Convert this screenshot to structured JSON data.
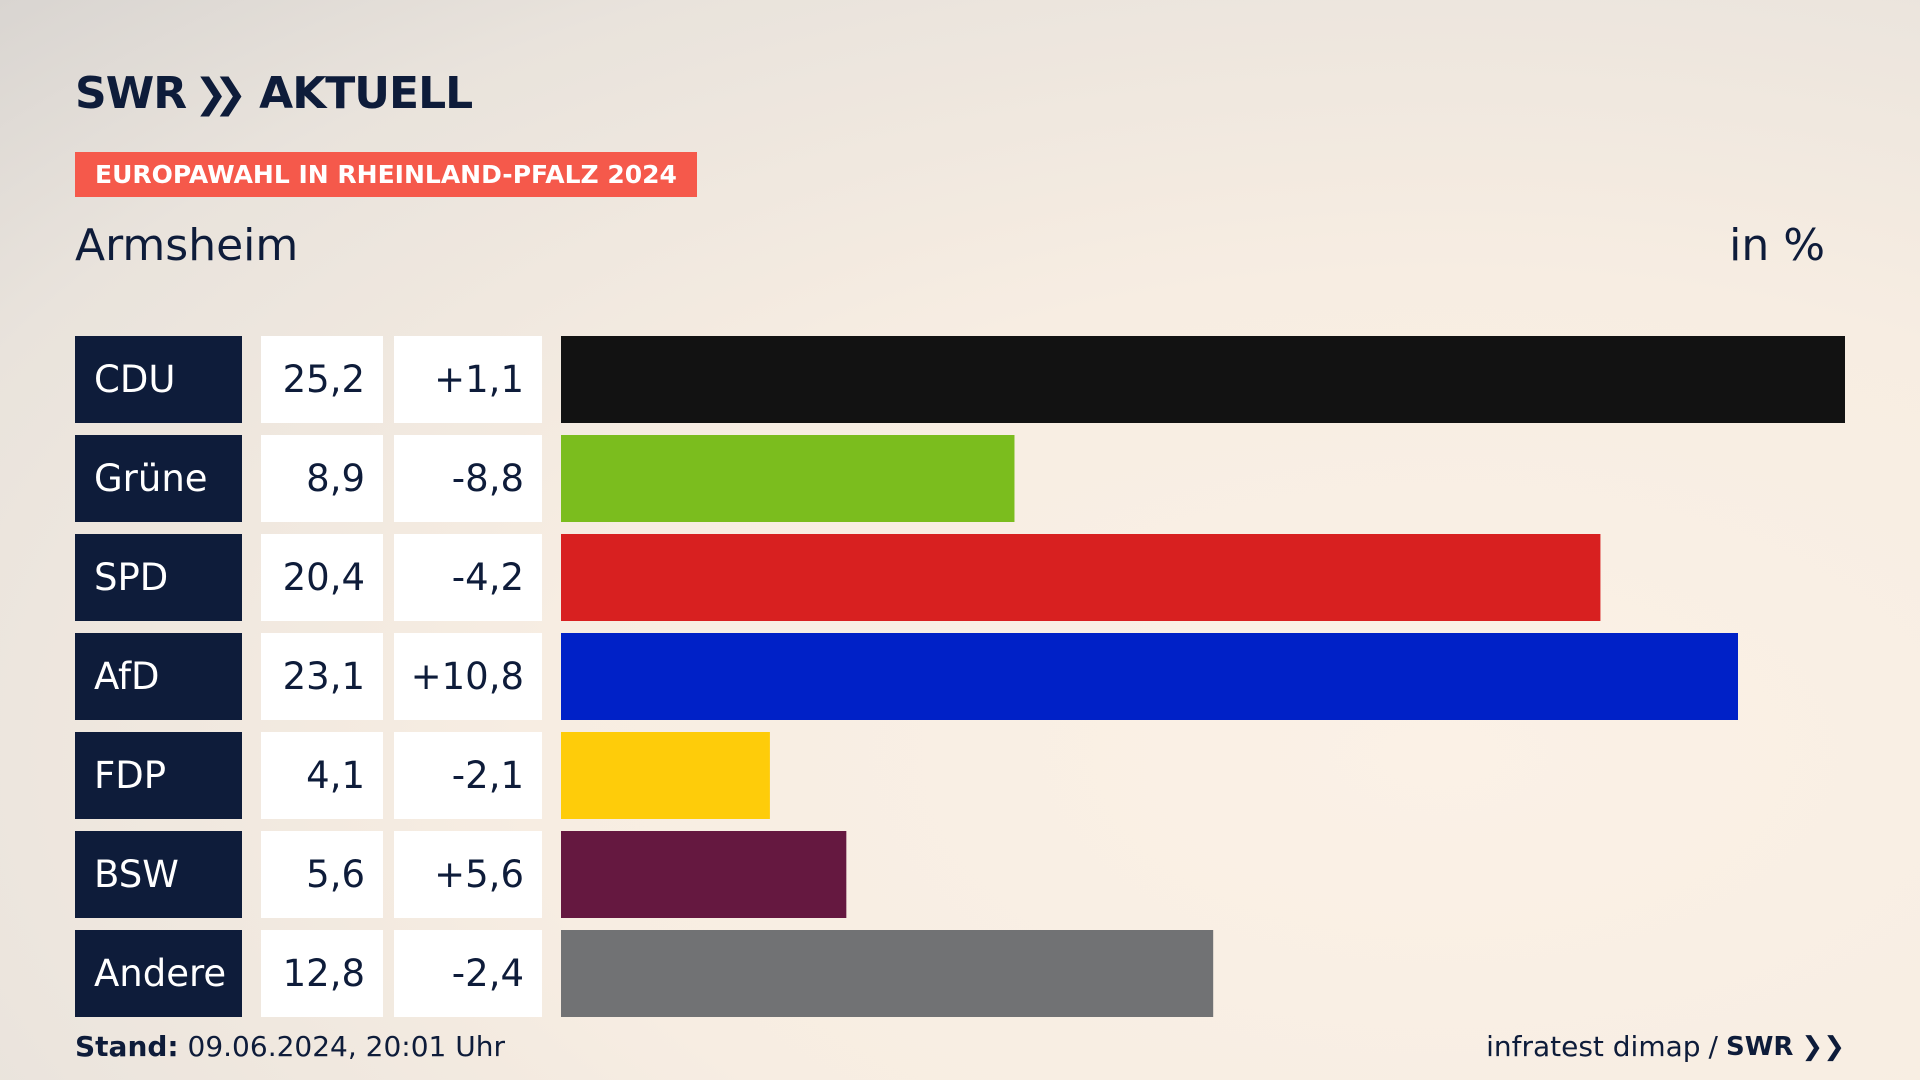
{
  "brand": {
    "logo_left": "SWR",
    "logo_chevrons": "»",
    "logo_right": "AKTUELL"
  },
  "tag": "EUROPAWAHL IN RHEINLAND-PFALZ 2024",
  "place": "Armsheim",
  "unit": "in %",
  "footer": {
    "stand_label": "Stand:",
    "stand_value": "09.06.2024, 20:01 Uhr",
    "source": "infratest dimap",
    "separator": "/",
    "source_brand": "SWR",
    "source_brand_chevrons": "»"
  },
  "chart_data": {
    "type": "bar",
    "orientation": "horizontal",
    "categories": [
      "CDU",
      "Grüne",
      "SPD",
      "AfD",
      "FDP",
      "BSW",
      "Andere"
    ],
    "values": [
      25.2,
      8.9,
      20.4,
      23.1,
      4.1,
      5.6,
      12.8
    ],
    "values_text": [
      "25,2",
      "8,9",
      "20,4",
      "23,1",
      "4,1",
      "5,6",
      "12,8"
    ],
    "changes_text": [
      "+1,1",
      "-8,8",
      "-4,2",
      "+10,8",
      "-2,1",
      "+5,6",
      "-2,4"
    ],
    "colors": [
      "#121212",
      "#7bbd1e",
      "#d82020",
      "#0021c7",
      "#fecc0a",
      "#651840",
      "#717274"
    ],
    "label_box_color": "#0e1c3a",
    "xlim": [
      0,
      25.2
    ],
    "grid": false,
    "legend": "none"
  }
}
